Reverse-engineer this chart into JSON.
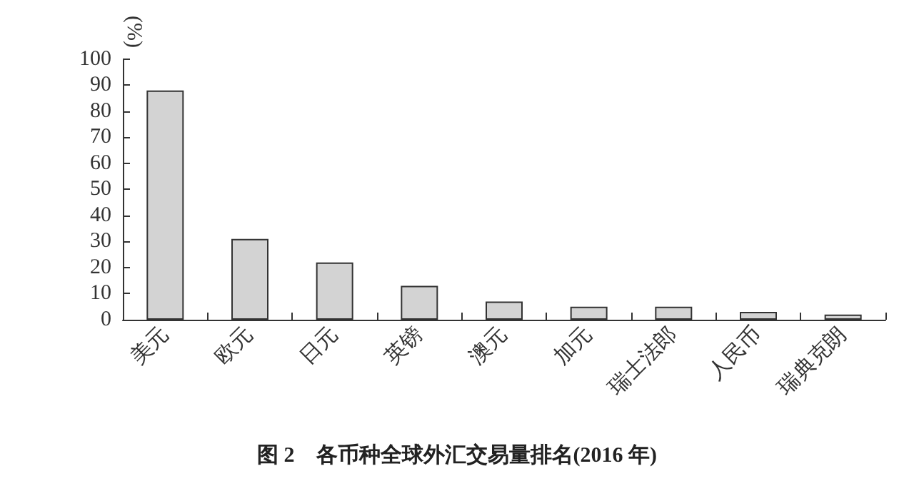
{
  "chart_data": {
    "type": "bar",
    "title": "图 2　各币种全球外汇交易量排名(2016 年)",
    "ylabel": "(%)",
    "categories": [
      "美元",
      "欧元",
      "日元",
      "英镑",
      "澳元",
      "加元",
      "瑞士法郎",
      "人民币",
      "瑞典克朗"
    ],
    "values": [
      88,
      31,
      22,
      13,
      7,
      5,
      5,
      3,
      2
    ],
    "color": "#d3d3d3",
    "ylim": [
      0,
      100
    ],
    "yticks": [
      0,
      10,
      20,
      30,
      40,
      50,
      60,
      70,
      80,
      90,
      100
    ],
    "grid": false
  }
}
